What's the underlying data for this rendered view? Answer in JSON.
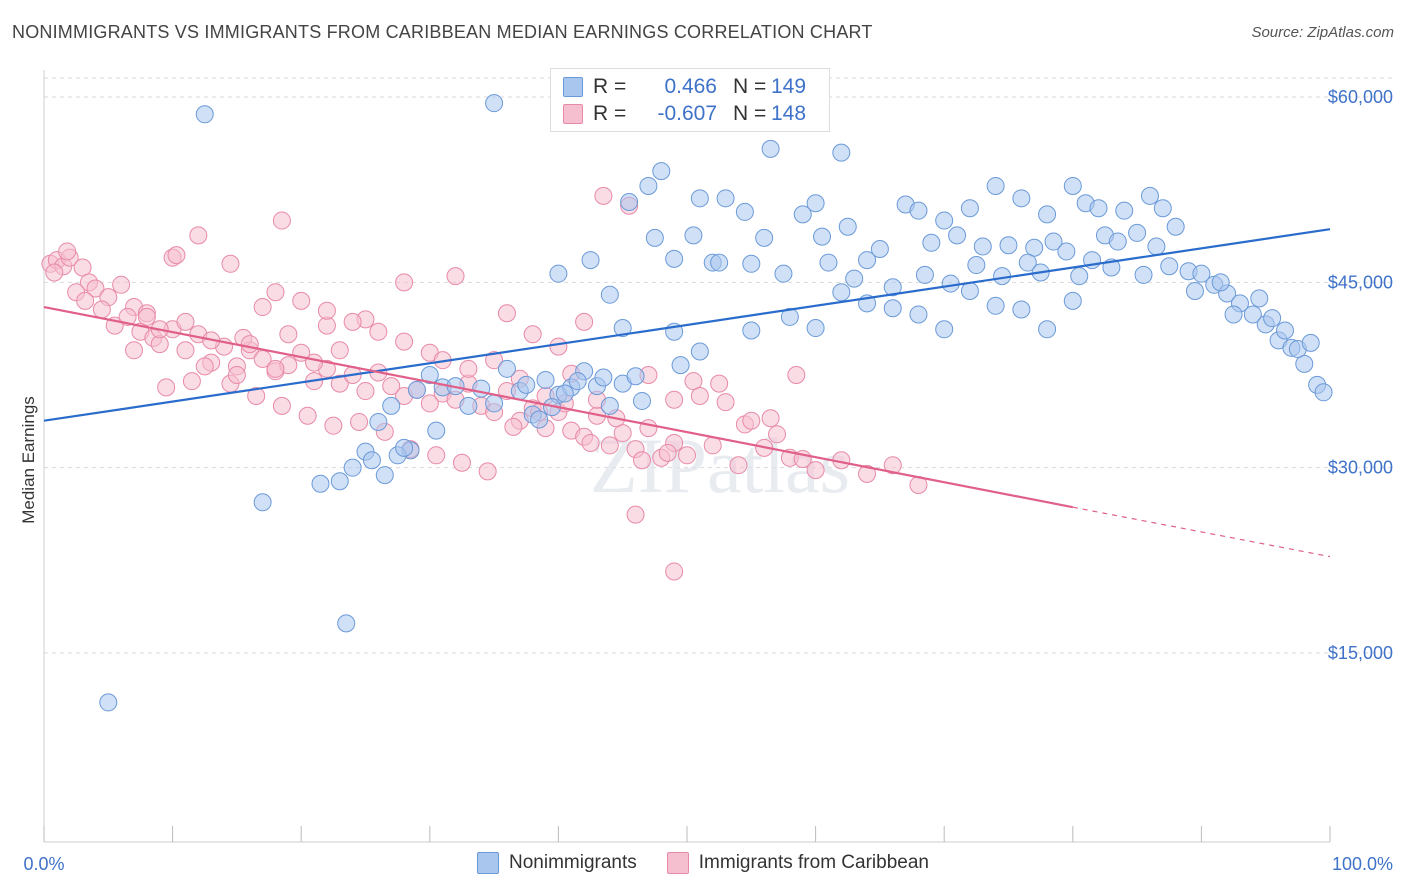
{
  "title": "NONIMMIGRANTS VS IMMIGRANTS FROM CARIBBEAN MEDIAN EARNINGS CORRELATION CHART",
  "source": "Source: ZipAtlas.com",
  "legend": {
    "rows": [
      {
        "r_label": "R =",
        "r_value": "0.466",
        "n_label": "N =",
        "n_value": "149"
      },
      {
        "r_label": "R =",
        "r_value": "-0.607",
        "n_label": "N =",
        "n_value": "148"
      }
    ]
  },
  "bottom_legend": [
    "Nonimmigrants",
    "Immigrants from Caribbean"
  ],
  "colors": {
    "blue_fill": "#a9c7ee",
    "blue_stroke": "#6b9ad8",
    "blue_line": "#2a6ccb",
    "pink_fill": "#f6bfd0",
    "pink_stroke": "#e88aa8",
    "pink_line": "#e0608a",
    "tick_text": "#3f72c9",
    "grid": "#d9d9d9"
  },
  "chart_data": {
    "type": "scatter",
    "title": "NONIMMIGRANTS VS IMMIGRANTS FROM CARIBBEAN MEDIAN EARNINGS CORRELATION CHART",
    "xlabel": "",
    "ylabel": "Median Earnings",
    "xlim": [
      0,
      100
    ],
    "ylim": [
      1500,
      62000
    ],
    "x_tick_labels": [
      "0.0%",
      "100.0%"
    ],
    "y_ticks": [
      15000,
      30000,
      45000,
      60000
    ],
    "y_tick_labels": [
      "$15,000",
      "$30,000",
      "$45,000",
      "$60,000"
    ],
    "grid": true,
    "watermark": "ZIPatlas",
    "series": [
      {
        "name": "Nonimmigrants",
        "r": 0.466,
        "n": 149,
        "trend": {
          "x0": 0,
          "y0": 33800,
          "x1": 100,
          "y1": 49300
        },
        "points": [
          [
            12.5,
            58600
          ],
          [
            35,
            59500
          ],
          [
            5,
            11000
          ],
          [
            17,
            27200
          ],
          [
            23.5,
            17400
          ],
          [
            51.5,
            59000
          ],
          [
            56.5,
            55800
          ],
          [
            62,
            55500
          ],
          [
            48,
            54000
          ],
          [
            47,
            52800
          ],
          [
            51,
            51800
          ],
          [
            45.5,
            51500
          ],
          [
            53,
            51800
          ],
          [
            54.5,
            50700
          ],
          [
            59,
            50500
          ],
          [
            60,
            51400
          ],
          [
            62.5,
            49500
          ],
          [
            67,
            51300
          ],
          [
            68,
            50800
          ],
          [
            70,
            50000
          ],
          [
            72,
            51000
          ],
          [
            74,
            52800
          ],
          [
            76,
            51800
          ],
          [
            78,
            50500
          ],
          [
            80,
            52800
          ],
          [
            81,
            51400
          ],
          [
            82,
            51000
          ],
          [
            84,
            50800
          ],
          [
            86,
            52000
          ],
          [
            87,
            51000
          ],
          [
            88,
            49500
          ],
          [
            47.5,
            48600
          ],
          [
            50.5,
            48800
          ],
          [
            56,
            48600
          ],
          [
            60.5,
            48700
          ],
          [
            65,
            47700
          ],
          [
            69,
            48200
          ],
          [
            71,
            48800
          ],
          [
            73,
            47900
          ],
          [
            75,
            48000
          ],
          [
            77,
            47800
          ],
          [
            78.5,
            48300
          ],
          [
            79.5,
            47500
          ],
          [
            82.5,
            48800
          ],
          [
            83.5,
            48300
          ],
          [
            85,
            49000
          ],
          [
            86.5,
            47900
          ],
          [
            42.5,
            46800
          ],
          [
            49,
            46900
          ],
          [
            52,
            46600
          ],
          [
            52.5,
            46600
          ],
          [
            55,
            46500
          ],
          [
            57.5,
            45700
          ],
          [
            61,
            46600
          ],
          [
            63,
            45300
          ],
          [
            64,
            46800
          ],
          [
            66,
            44600
          ],
          [
            68.5,
            45600
          ],
          [
            70.5,
            44900
          ],
          [
            72.5,
            46400
          ],
          [
            74.5,
            45500
          ],
          [
            76.5,
            46600
          ],
          [
            77.5,
            45800
          ],
          [
            80.5,
            45500
          ],
          [
            81.5,
            46800
          ],
          [
            83,
            46200
          ],
          [
            85.5,
            45600
          ],
          [
            87.5,
            46300
          ],
          [
            89,
            45900
          ],
          [
            90,
            45700
          ],
          [
            91,
            44800
          ],
          [
            92,
            44100
          ],
          [
            93,
            43300
          ],
          [
            94,
            42400
          ],
          [
            95,
            41600
          ],
          [
            96,
            40300
          ],
          [
            97,
            39700
          ],
          [
            98,
            38400
          ],
          [
            99,
            36700
          ],
          [
            99.5,
            36100
          ],
          [
            40,
            45700
          ],
          [
            44,
            44000
          ],
          [
            45,
            41300
          ],
          [
            49,
            41000
          ],
          [
            51,
            39400
          ],
          [
            55,
            41100
          ],
          [
            58,
            42200
          ],
          [
            60,
            41300
          ],
          [
            62,
            44200
          ],
          [
            64,
            43300
          ],
          [
            66,
            42900
          ],
          [
            68,
            42400
          ],
          [
            70,
            41200
          ],
          [
            72,
            44300
          ],
          [
            74,
            43100
          ],
          [
            76,
            42800
          ],
          [
            78,
            41200
          ],
          [
            80,
            43500
          ],
          [
            89.5,
            44300
          ],
          [
            91.5,
            45000
          ],
          [
            92.5,
            42400
          ],
          [
            94.5,
            43700
          ],
          [
            95.5,
            42100
          ],
          [
            96.5,
            41100
          ],
          [
            97.5,
            39600
          ],
          [
            98.5,
            40100
          ],
          [
            36,
            38000
          ],
          [
            37,
            36200
          ],
          [
            39,
            37100
          ],
          [
            40,
            35900
          ],
          [
            41,
            36500
          ],
          [
            42,
            37800
          ],
          [
            43,
            36600
          ],
          [
            44,
            35000
          ],
          [
            45,
            36800
          ],
          [
            46,
            37400
          ],
          [
            38,
            34300
          ],
          [
            34,
            36400
          ],
          [
            35,
            35200
          ],
          [
            30,
            37500
          ],
          [
            31,
            36500
          ],
          [
            29,
            36300
          ],
          [
            27,
            35000
          ],
          [
            26,
            33700
          ],
          [
            25,
            31300
          ],
          [
            24,
            30000
          ],
          [
            23,
            28900
          ],
          [
            25.5,
            30600
          ],
          [
            26.5,
            29400
          ],
          [
            28.5,
            31400
          ],
          [
            30.5,
            33000
          ],
          [
            37.5,
            36700
          ],
          [
            41.5,
            37000
          ],
          [
            43.5,
            37300
          ],
          [
            46.5,
            35400
          ],
          [
            49.5,
            38300
          ],
          [
            33,
            35000
          ],
          [
            32,
            36600
          ],
          [
            21.5,
            28700
          ],
          [
            27.5,
            31000
          ],
          [
            28,
            31600
          ],
          [
            38.5,
            33900
          ],
          [
            39.5,
            34900
          ],
          [
            40.5,
            36000
          ]
        ]
      },
      {
        "name": "Immigrants from Caribbean",
        "r": -0.607,
        "n": 148,
        "trend": {
          "x0": 0,
          "y0": 43000,
          "x1": 80,
          "y1": 26800,
          "dash_to_x": 100,
          "dash_to_y": 22800
        },
        "points": [
          [
            0.5,
            46500
          ],
          [
            1,
            46800
          ],
          [
            1.5,
            46300
          ],
          [
            2,
            47000
          ],
          [
            0.8,
            45800
          ],
          [
            1.8,
            47500
          ],
          [
            3,
            46200
          ],
          [
            3.5,
            45000
          ],
          [
            4,
            44500
          ],
          [
            5,
            43800
          ],
          [
            6,
            44800
          ],
          [
            7,
            43000
          ],
          [
            8,
            42500
          ],
          [
            2.5,
            44200
          ],
          [
            3.2,
            43500
          ],
          [
            4.5,
            42800
          ],
          [
            5.5,
            41500
          ],
          [
            6.5,
            42200
          ],
          [
            7.5,
            41000
          ],
          [
            8.5,
            40500
          ],
          [
            9,
            40000
          ],
          [
            10,
            41200
          ],
          [
            11,
            39500
          ],
          [
            12,
            40800
          ],
          [
            13,
            38500
          ],
          [
            14,
            39800
          ],
          [
            15,
            38200
          ],
          [
            16,
            39500
          ],
          [
            17,
            38800
          ],
          [
            18,
            37800
          ],
          [
            19,
            38300
          ],
          [
            20,
            39300
          ],
          [
            21,
            37000
          ],
          [
            22,
            38000
          ],
          [
            23,
            36800
          ],
          [
            24,
            37500
          ],
          [
            25,
            36200
          ],
          [
            26,
            37700
          ],
          [
            27,
            36600
          ],
          [
            28,
            35800
          ],
          [
            29,
            36300
          ],
          [
            30,
            35200
          ],
          [
            31,
            36000
          ],
          [
            32,
            35500
          ],
          [
            33,
            36800
          ],
          [
            34,
            35000
          ],
          [
            35,
            34500
          ],
          [
            36,
            36200
          ],
          [
            37,
            33800
          ],
          [
            38,
            34800
          ],
          [
            39,
            33200
          ],
          [
            40,
            34500
          ],
          [
            41,
            33000
          ],
          [
            42,
            32500
          ],
          [
            43,
            34200
          ],
          [
            44,
            31800
          ],
          [
            45,
            32800
          ],
          [
            46,
            31500
          ],
          [
            47,
            33200
          ],
          [
            48,
            30800
          ],
          [
            49,
            32000
          ],
          [
            50,
            31000
          ],
          [
            52,
            31800
          ],
          [
            54,
            30200
          ],
          [
            56,
            31600
          ],
          [
            58,
            30800
          ],
          [
            60,
            29800
          ],
          [
            62,
            30600
          ],
          [
            64,
            29500
          ],
          [
            66,
            30200
          ],
          [
            68,
            28600
          ],
          [
            7,
            39500
          ],
          [
            9.5,
            36500
          ],
          [
            11.5,
            37000
          ],
          [
            12.5,
            38200
          ],
          [
            14.5,
            36800
          ],
          [
            16.5,
            35800
          ],
          [
            18.5,
            35000
          ],
          [
            20.5,
            34200
          ],
          [
            22.5,
            33400
          ],
          [
            24.5,
            33700
          ],
          [
            26.5,
            32900
          ],
          [
            28.5,
            31500
          ],
          [
            30.5,
            31000
          ],
          [
            32.5,
            30400
          ],
          [
            34.5,
            29700
          ],
          [
            36.5,
            33300
          ],
          [
            38.5,
            34500
          ],
          [
            40.5,
            35200
          ],
          [
            42.5,
            32000
          ],
          [
            44.5,
            34000
          ],
          [
            46.5,
            30600
          ],
          [
            48.5,
            31200
          ],
          [
            50.5,
            37000
          ],
          [
            52.5,
            36800
          ],
          [
            54.5,
            33500
          ],
          [
            56.5,
            34000
          ],
          [
            58.5,
            37500
          ],
          [
            36,
            42500
          ],
          [
            38,
            40800
          ],
          [
            40,
            39800
          ],
          [
            42,
            41800
          ],
          [
            43.5,
            52000
          ],
          [
            45.5,
            51200
          ],
          [
            32,
            45500
          ],
          [
            28,
            45000
          ],
          [
            25,
            42000
          ],
          [
            22,
            41500
          ],
          [
            19,
            40800
          ],
          [
            18,
            38000
          ],
          [
            15.5,
            40500
          ],
          [
            13,
            40300
          ],
          [
            11,
            41800
          ],
          [
            9,
            41200
          ],
          [
            8,
            42200
          ],
          [
            10,
            47000
          ],
          [
            10.3,
            47200
          ],
          [
            12,
            48800
          ],
          [
            14.5,
            46500
          ],
          [
            18,
            44200
          ],
          [
            20,
            43500
          ],
          [
            22,
            42700
          ],
          [
            24,
            41800
          ],
          [
            26,
            41000
          ],
          [
            28,
            40200
          ],
          [
            30,
            39300
          ],
          [
            31,
            38700
          ],
          [
            33,
            38000
          ],
          [
            35,
            38700
          ],
          [
            37,
            37200
          ],
          [
            39,
            35800
          ],
          [
            41,
            37600
          ],
          [
            43,
            35500
          ],
          [
            47,
            37500
          ],
          [
            49,
            35500
          ],
          [
            51,
            35800
          ],
          [
            53,
            35300
          ],
          [
            55,
            33800
          ],
          [
            57,
            32700
          ],
          [
            59,
            30700
          ],
          [
            46,
            26200
          ],
          [
            49,
            21600
          ],
          [
            18.5,
            50000
          ],
          [
            17,
            43000
          ],
          [
            15,
            37500
          ],
          [
            16,
            40000
          ],
          [
            21,
            38500
          ],
          [
            23,
            39500
          ]
        ]
      }
    ]
  }
}
